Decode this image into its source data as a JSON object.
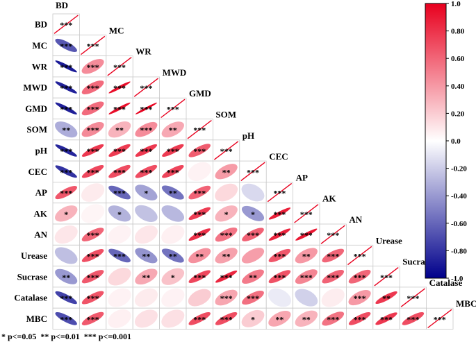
{
  "chart_data": {
    "type": "heatmap",
    "variables": [
      "BD",
      "MC",
      "WR",
      "MWD",
      "GMD",
      "SOM",
      "pH",
      "CEC",
      "AP",
      "AK",
      "AN",
      "Urease",
      "Sucrase",
      "Catalase",
      "MBC"
    ],
    "matrix_lower": [
      [
        1
      ],
      [
        -0.66,
        1
      ],
      [
        -0.9,
        0.45,
        1
      ],
      [
        -0.87,
        0.58,
        0.95,
        1
      ],
      [
        -0.88,
        0.58,
        0.95,
        0.99,
        1
      ],
      [
        -0.32,
        0.46,
        0.3,
        0.45,
        0.34,
        1
      ],
      [
        -0.85,
        0.78,
        0.77,
        0.78,
        0.77,
        0.64,
        1
      ],
      [
        -0.8,
        0.72,
        0.7,
        0.7,
        0.73,
        0.05,
        0.39,
        1
      ],
      [
        0.66,
        0.08,
        -0.6,
        -0.36,
        -0.55,
        0.61,
        0.15,
        -0.15,
        1
      ],
      [
        0.3,
        0.04,
        -0.3,
        -0.24,
        -0.28,
        0.76,
        0.3,
        -0.4,
        0.88,
        1
      ],
      [
        0.1,
        0.6,
        0.05,
        0.1,
        0.06,
        0.81,
        0.54,
        0.62,
        0.86,
        0.91,
        1
      ],
      [
        -0.25,
        0.69,
        -0.6,
        -0.42,
        -0.55,
        0.43,
        0.37,
        0.38,
        0.66,
        0.4,
        0.6,
        1
      ],
      [
        -0.4,
        0.65,
        0.15,
        0.34,
        0.24,
        0.72,
        0.85,
        0.52,
        0.68,
        0.48,
        0.61,
        0.6,
        1
      ],
      [
        -0.74,
        0.67,
        0.05,
        0.08,
        0.05,
        0.2,
        0.35,
        0.56,
        -0.08,
        -0.18,
        0.07,
        0.4,
        0.78,
        1
      ],
      [
        -0.7,
        0.65,
        0.06,
        0.12,
        0.12,
        0.7,
        0.7,
        0.2,
        0.35,
        0.3,
        0.55,
        0.7,
        0.78,
        0.7,
        1
      ]
    ],
    "significance_lower": [
      [
        "***"
      ],
      [
        "***",
        "***"
      ],
      [
        "***",
        "***",
        "***"
      ],
      [
        "***",
        "***",
        "***",
        "***"
      ],
      [
        "***",
        "***",
        "***",
        "***",
        "***"
      ],
      [
        "**",
        "***",
        "**",
        "***",
        "**",
        "***"
      ],
      [
        "***",
        "***",
        "***",
        "***",
        "***",
        "***",
        "***"
      ],
      [
        "***",
        "***",
        "***",
        "***",
        "***",
        "",
        "**",
        "***"
      ],
      [
        "***",
        "",
        "***",
        "*",
        "**",
        "***",
        "",
        "",
        "***"
      ],
      [
        "*",
        "",
        "*",
        "",
        "",
        "***",
        "*",
        "*",
        "***",
        "***"
      ],
      [
        "",
        "***",
        "",
        "",
        "",
        "***",
        "***",
        "***",
        "***",
        "***",
        "***"
      ],
      [
        "",
        "***",
        "***",
        "**",
        "**",
        "**",
        "**",
        "",
        "***",
        "**",
        "***",
        "***"
      ],
      [
        "**",
        "***",
        "",
        "**",
        "*",
        "***",
        "***",
        "**",
        "***",
        "***",
        "***",
        "***",
        "***"
      ],
      [
        "***",
        "***",
        "",
        "",
        "",
        "",
        "***",
        "***",
        "",
        "",
        "",
        "***",
        "**",
        "***"
      ],
      [
        "***",
        "***",
        "",
        "",
        "",
        "***",
        "***",
        "*",
        "**",
        "**",
        "***",
        "***",
        "***",
        "***",
        "***"
      ]
    ],
    "colorbar": {
      "min": -1.0,
      "max": 1.0,
      "ticks": [
        "1.0",
        "0.80",
        "0.60",
        "0.40",
        "0.20",
        "0.0",
        "-0.20",
        "-0.40",
        "-0.60",
        "-0.80",
        "-1.0"
      ],
      "colors": {
        "negative": "#00008B",
        "zero": "#FFFFFF",
        "positive": "#E8001E"
      }
    },
    "legend_note": "* p<=0.05  ** p<=0.01  *** p<=0.001"
  }
}
